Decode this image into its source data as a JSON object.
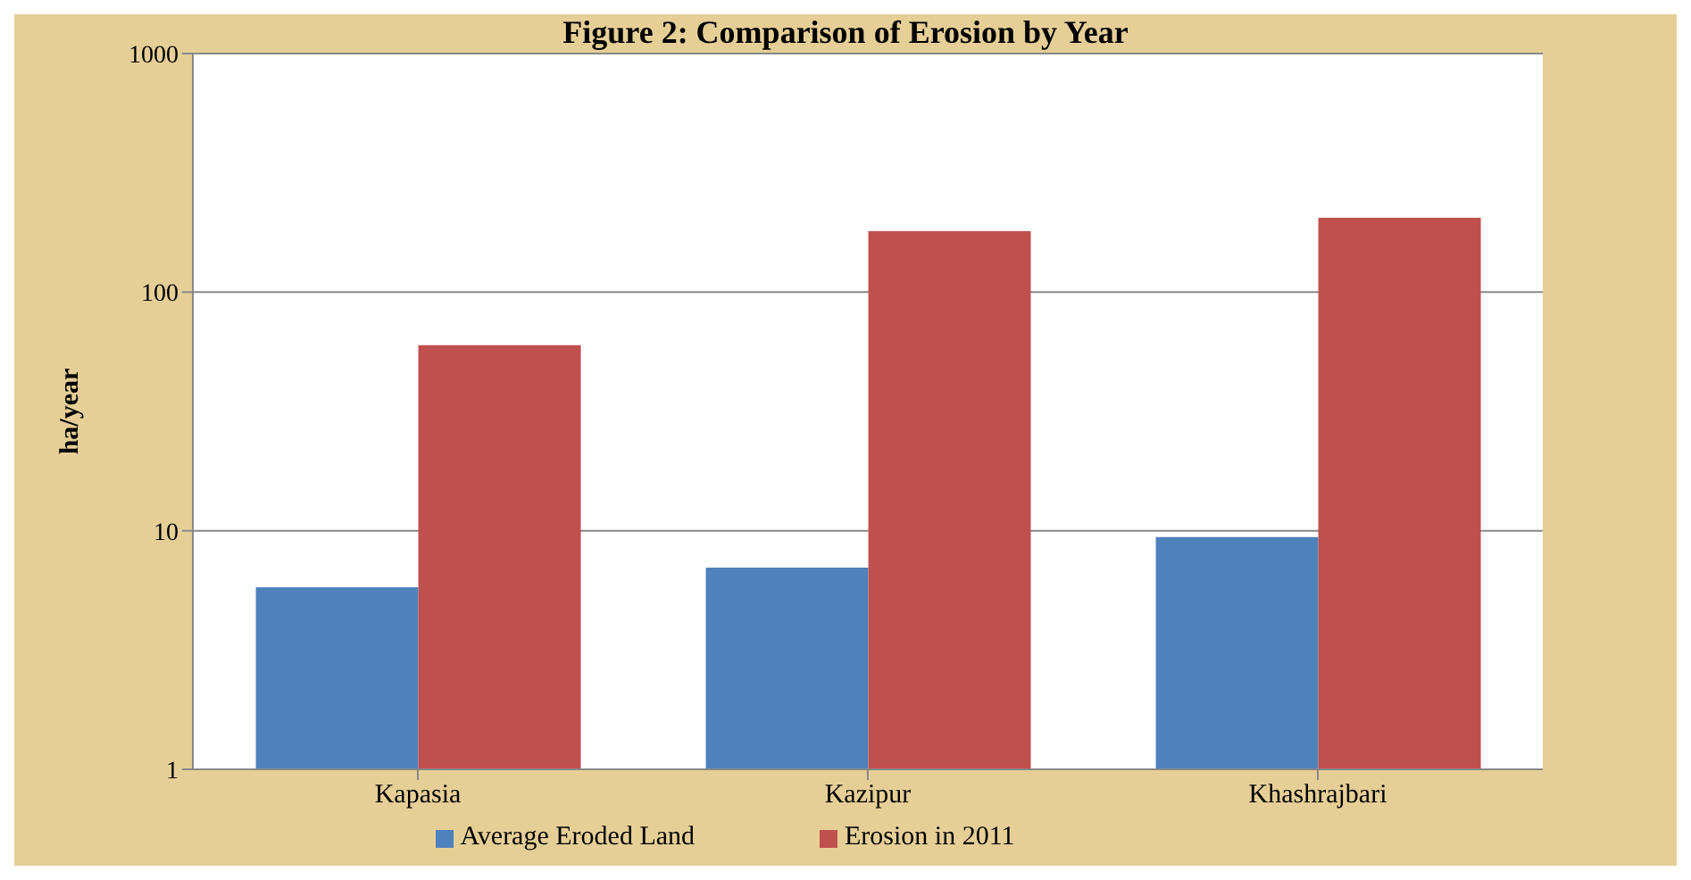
{
  "chart_data": {
    "type": "bar",
    "title": "Figure 2: Comparison of Erosion by Year",
    "ylabel": "ha/year",
    "categories": [
      "Kapasia",
      "Kazipur",
      "Khashrajbari"
    ],
    "series": [
      {
        "name": "Average Eroded Land",
        "color": "#4f81bd",
        "values": [
          5.8,
          7.0,
          9.4
        ]
      },
      {
        "name": "Erosion in 2011",
        "color": "#c0504d",
        "values": [
          60,
          180,
          205
        ]
      }
    ],
    "log": true,
    "ylim": [
      1,
      1000
    ],
    "yticks": [
      1,
      10,
      100,
      1000
    ],
    "grid": "y",
    "legend": "bottom"
  }
}
